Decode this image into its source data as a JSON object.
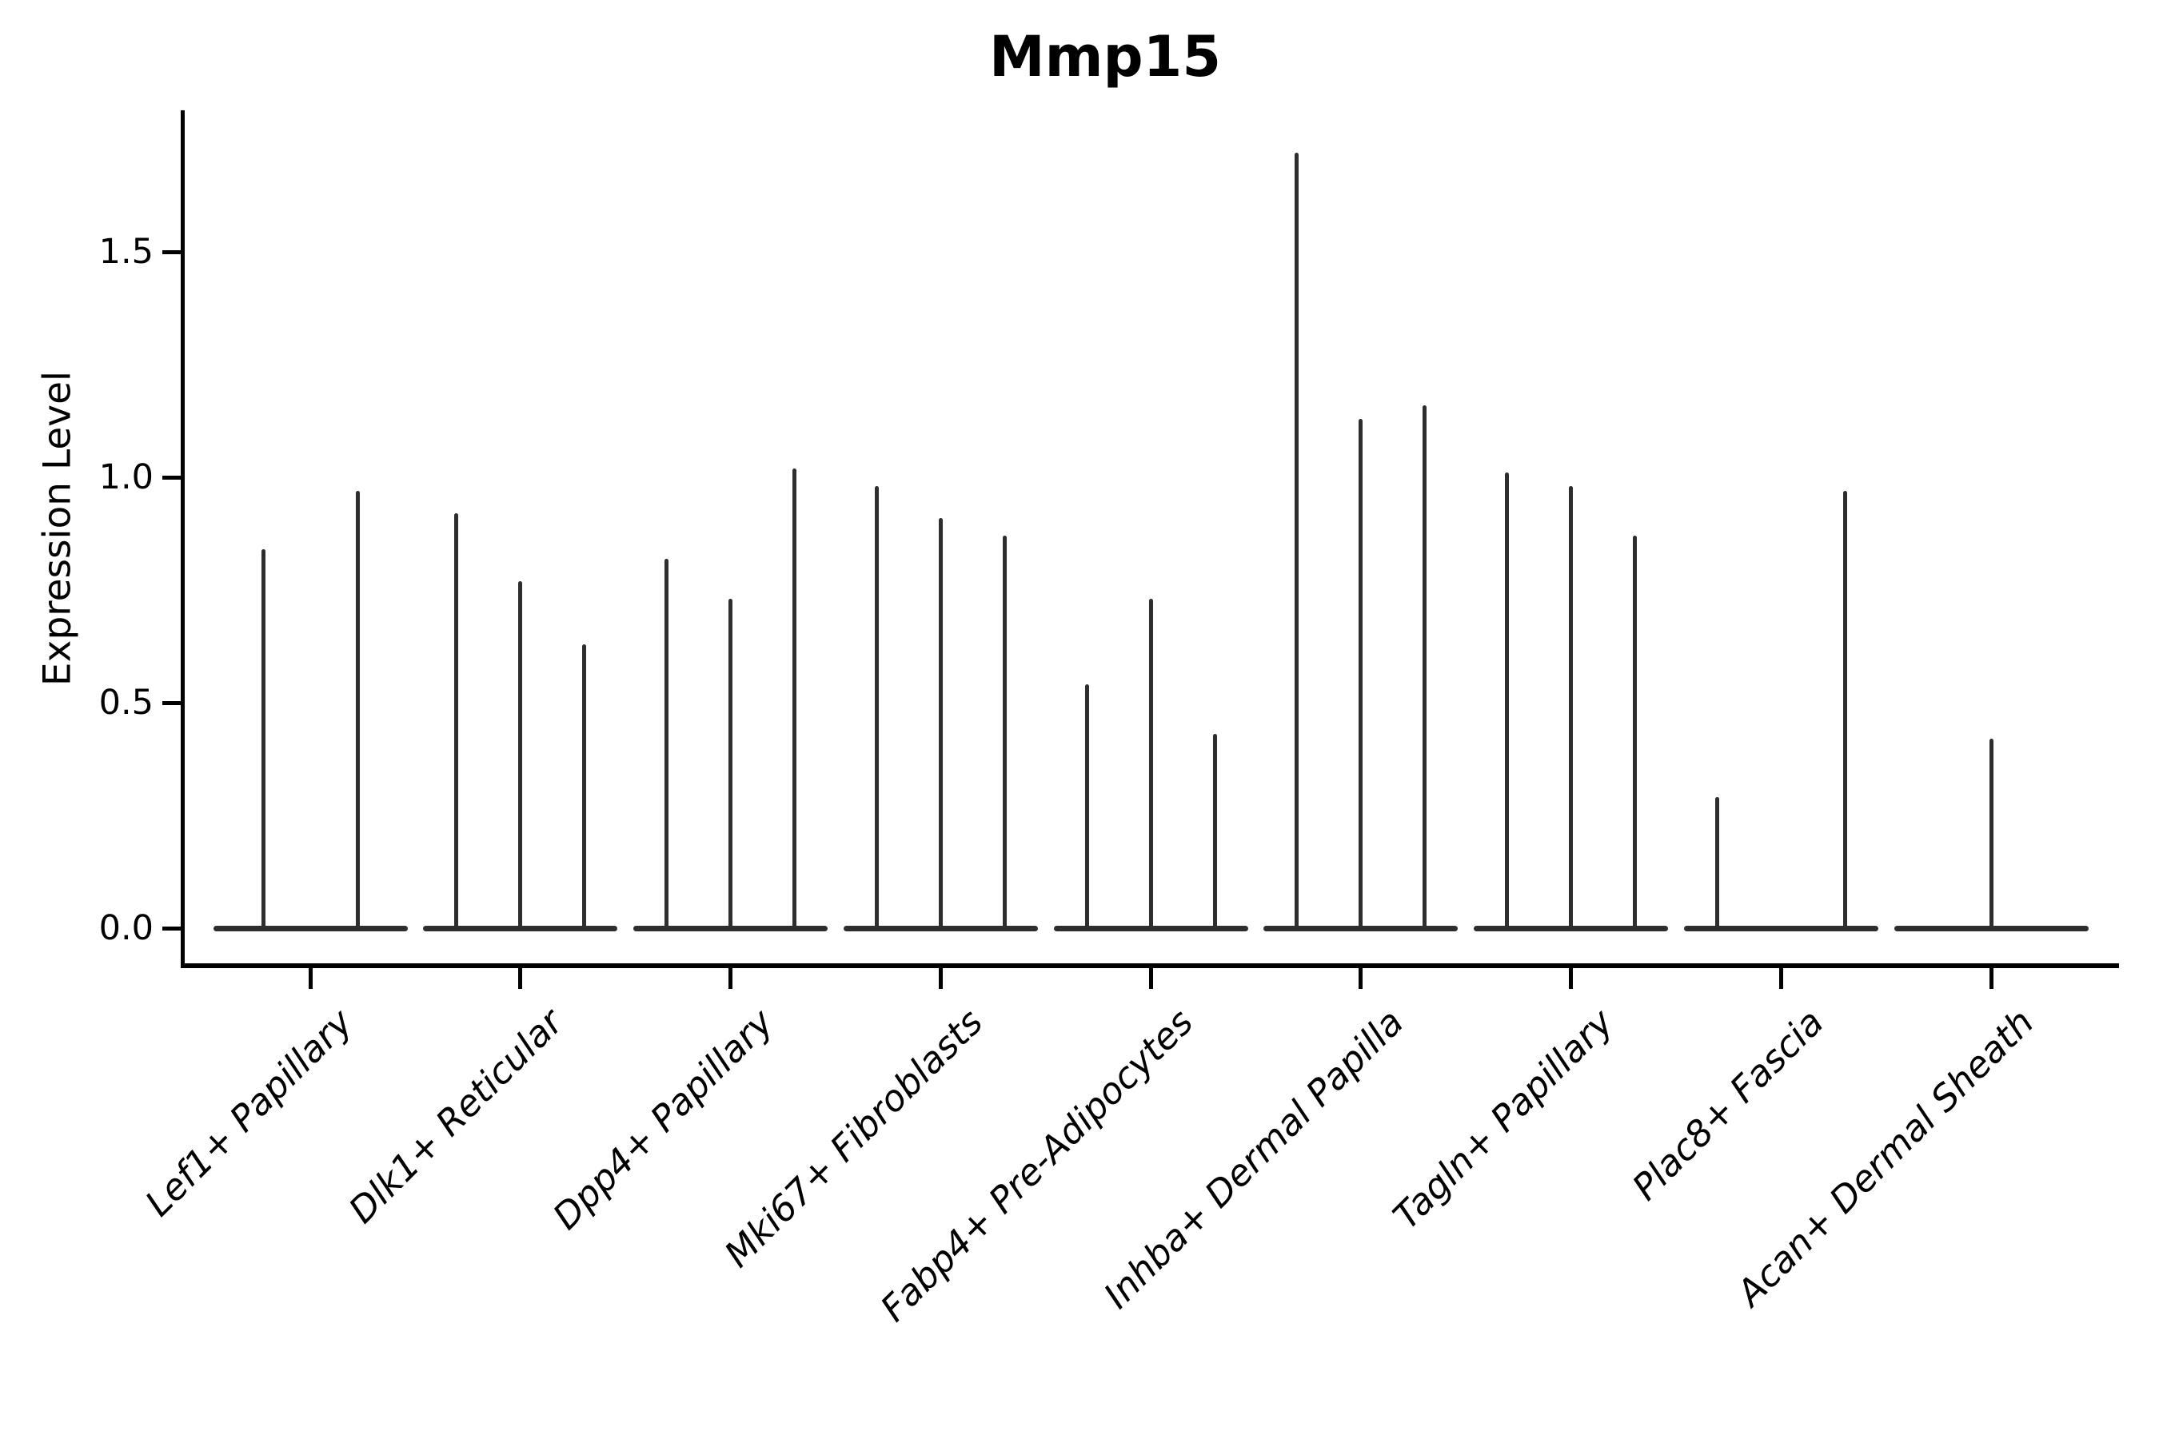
{
  "title": "Mmp15",
  "y_axis": {
    "label": "Expression Level",
    "tick_labels": [
      "0.0",
      "0.5",
      "1.0",
      "1.5"
    ]
  },
  "x_axis": {
    "label": "",
    "tick_labels": [
      "Lef1+ Papillary",
      "Dlk1+ Reticular",
      "Dpp4+ Papillary",
      "Mki67+ Fibroblasts",
      "Fabp4+ Pre-Adipocytes",
      "Inhba+ Dermal Papilla",
      "Tagln+ Papillary",
      "Plac8+ Fascia",
      "Acan+ Dermal Sheath"
    ],
    "tick_label_style": "italic, rotated 45 degrees, right-anchored"
  },
  "chart_data": {
    "type": "violin",
    "title": "Mmp15",
    "xlabel": "",
    "ylabel": "Expression Level",
    "yticks": [
      0.0,
      0.5,
      1.0,
      1.5
    ],
    "ytick_labels": [
      "0.0",
      "0.5",
      "1.0",
      "1.5"
    ],
    "ylim": [
      -0.09,
      1.8
    ],
    "grid": false,
    "legend": "none",
    "background": "#ffffff",
    "axis_color": "#000000",
    "violin_color": "#2e2e2e",
    "description": "Needle-thin violins: flat horizontal base at expression 0 with a thin spike rising to the maximum expression value; several violins per cell-type category.",
    "categories": [
      "Lef1+ Papillary",
      "Dlk1+ Reticular",
      "Dpp4+ Papillary",
      "Mki67+ Fibroblasts",
      "Fabp4+ Pre-Adipocytes",
      "Inhba+ Dermal Papilla",
      "Tagln+ Papillary",
      "Plac8+ Fascia",
      "Acan+ Dermal Sheath"
    ],
    "violins": [
      {
        "category": "Lef1+ Papillary",
        "spikes": [
          {
            "offset": -59,
            "max": 0.84
          },
          {
            "offset": 59,
            "max": 0.97
          }
        ]
      },
      {
        "category": "Dlk1+ Reticular",
        "spikes": [
          {
            "offset": -80,
            "max": 0.92
          },
          {
            "offset": 0,
            "max": 0.77
          },
          {
            "offset": 80,
            "max": 0.63
          }
        ]
      },
      {
        "category": "Dpp4+ Papillary",
        "spikes": [
          {
            "offset": -80,
            "max": 0.82
          },
          {
            "offset": 0,
            "max": 0.73
          },
          {
            "offset": 80,
            "max": 1.02
          }
        ]
      },
      {
        "category": "Mki67+ Fibroblasts",
        "spikes": [
          {
            "offset": -80,
            "max": 0.98
          },
          {
            "offset": 0,
            "max": 0.91
          },
          {
            "offset": 80,
            "max": 0.87
          }
        ]
      },
      {
        "category": "Fabp4+ Pre-Adipocytes",
        "spikes": [
          {
            "offset": -80,
            "max": 0.54
          },
          {
            "offset": 0,
            "max": 0.73
          },
          {
            "offset": 80,
            "max": 0.43
          }
        ]
      },
      {
        "category": "Inhba+ Dermal Papilla",
        "spikes": [
          {
            "offset": -80,
            "max": 1.72
          },
          {
            "offset": 0,
            "max": 1.13
          },
          {
            "offset": 80,
            "max": 1.16
          }
        ]
      },
      {
        "category": "Tagln+ Papillary",
        "spikes": [
          {
            "offset": -80,
            "max": 1.01
          },
          {
            "offset": 0,
            "max": 0.98
          },
          {
            "offset": 80,
            "max": 0.87
          }
        ]
      },
      {
        "category": "Plac8+ Fascia",
        "spikes": [
          {
            "offset": -80,
            "max": 0.29
          },
          {
            "offset": 0,
            "max": 0.0
          },
          {
            "offset": 80,
            "max": 0.97
          }
        ]
      },
      {
        "category": "Acan+ Dermal Sheath",
        "spikes": [
          {
            "offset": 0,
            "max": 0.42
          }
        ]
      }
    ]
  }
}
